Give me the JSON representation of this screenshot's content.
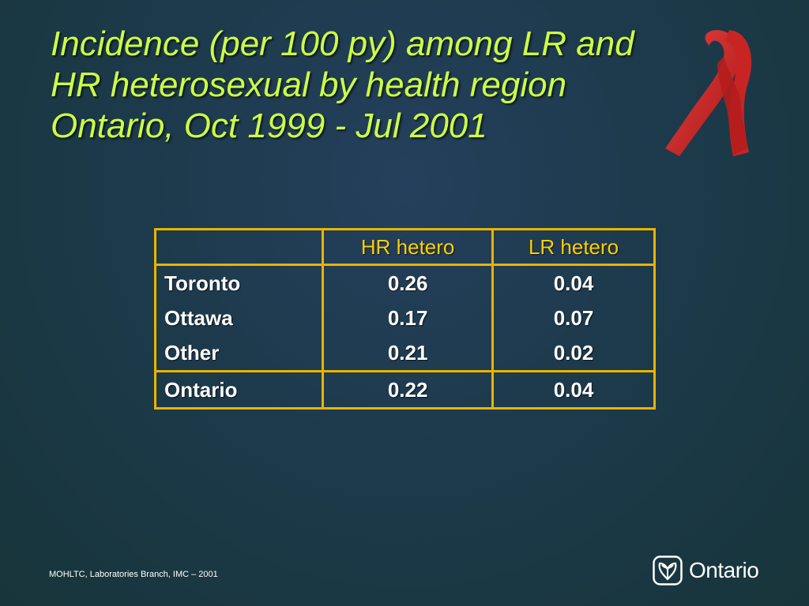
{
  "slide": {
    "title_lines": [
      "Incidence (per 100 py) among LR and",
      "HR heterosexual by health region",
      "Ontario, Oct 1999 - Jul 2001"
    ],
    "ribbon_icon": "red-awareness-ribbon",
    "colors": {
      "title": "#ccff44",
      "table_border": "#e8b400",
      "header_text": "#ffd000",
      "ribbon": "#d42b2b"
    }
  },
  "table": {
    "headers": [
      "",
      "HR hetero",
      "LR hetero"
    ],
    "rows": [
      {
        "region": "Toronto",
        "hr": "0.26",
        "lr": "0.04"
      },
      {
        "region": "Ottawa",
        "hr": "0.17",
        "lr": "0.07"
      },
      {
        "region": "Other",
        "hr": "0.21",
        "lr": "0.02"
      },
      {
        "region": "Ontario",
        "hr": "0.22",
        "lr": "0.04"
      }
    ]
  },
  "footer": {
    "source": "MOHLTC, Laboratories Branch, IMC – 2001"
  },
  "logo": {
    "icon": "ontario-trillium-icon",
    "text": "Ontario"
  }
}
